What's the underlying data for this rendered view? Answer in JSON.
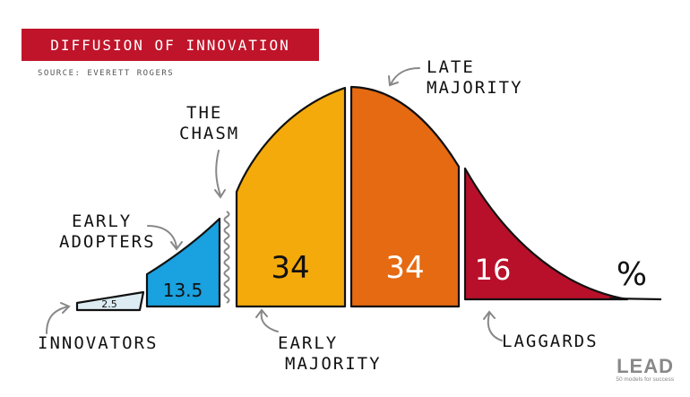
{
  "title": "DIFFUSION OF INNOVATION",
  "source": "SOURCE: EVERETT ROGERS",
  "segments": [
    {
      "name": "INNOVATORS",
      "value": "2.5",
      "color": "#dcecf2"
    },
    {
      "name": "EARLY ADOPTERS",
      "value": "13.5",
      "color": "#1aa1df"
    },
    {
      "name": "EARLY MAJORITY",
      "value": "34",
      "color": "#f5aa0c"
    },
    {
      "name": "LATE MAJORITY",
      "value": "34",
      "color": "#e66a12"
    },
    {
      "name": "LAGGARDS",
      "value": "16",
      "color": "#b8102a"
    }
  ],
  "labels": {
    "innovators": "INNOVATORS",
    "early_adopters_1": "EARLY",
    "early_adopters_2": "ADOPTERS",
    "chasm_1": "THE",
    "chasm_2": "CHASM",
    "early_majority_1": "EARLY",
    "early_majority_2": "MAJORITY",
    "late_majority_1": "LATE",
    "late_majority_2": "MAJORITY",
    "laggards": "LAGGARDS"
  },
  "unit": "%",
  "brand": {
    "name": "LEAD",
    "tagline": "50 models for success"
  }
}
